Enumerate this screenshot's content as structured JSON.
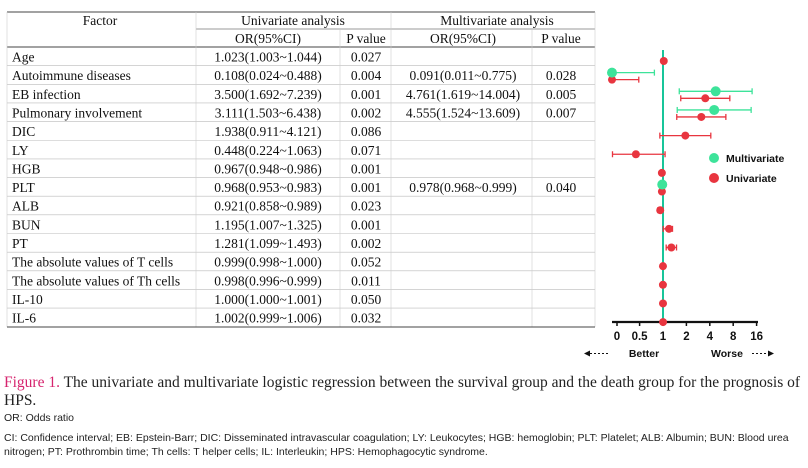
{
  "table": {
    "header_factor": "Factor",
    "header_univariate": "Univariate analysis",
    "header_multivariate": "Multivariate analysis",
    "sub_or": "OR(95%CI)",
    "sub_p": "P  value",
    "rows": [
      {
        "factor": "Age",
        "uni_or": "1.023(1.003~1.044)",
        "uni_p": "0.027",
        "multi_or": "",
        "multi_p": ""
      },
      {
        "factor": "Autoimmune diseases",
        "uni_or": "0.108(0.024~0.488)",
        "uni_p": "0.004",
        "multi_or": "0.091(0.011~0.775)",
        "multi_p": "0.028"
      },
      {
        "factor": "EB infection",
        "uni_or": "3.500(1.692~7.239)",
        "uni_p": "0.001",
        "multi_or": "4.761(1.619~14.004)",
        "multi_p": "0.005"
      },
      {
        "factor": "Pulmonary involvement",
        "uni_or": "3.111(1.503~6.438)",
        "uni_p": "0.002",
        "multi_or": "4.555(1.524~13.609)",
        "multi_p": "0.007"
      },
      {
        "factor": "DIC",
        "uni_or": "1.938(0.911~4.121)",
        "uni_p": "0.086",
        "multi_or": "",
        "multi_p": ""
      },
      {
        "factor": "LY",
        "uni_or": "0.448(0.224~1.063)",
        "uni_p": "0.071",
        "multi_or": "",
        "multi_p": ""
      },
      {
        "factor": "HGB",
        "uni_or": "0.967(0.948~0.986)",
        "uni_p": "0.001",
        "multi_or": "",
        "multi_p": ""
      },
      {
        "factor": "PLT",
        "uni_or": "0.968(0.953~0.983)",
        "uni_p": "0.001",
        "multi_or": "0.978(0.968~0.999)",
        "multi_p": "0.040"
      },
      {
        "factor": "ALB",
        "uni_or": "0.921(0.858~0.989)",
        "uni_p": "0.023",
        "multi_or": "",
        "multi_p": ""
      },
      {
        "factor": "BUN",
        "uni_or": "1.195(1.007~1.325)",
        "uni_p": "0.001",
        "multi_or": "",
        "multi_p": ""
      },
      {
        "factor": "PT",
        "uni_or": "1.281(1.099~1.493)",
        "uni_p": "0.002",
        "multi_or": "",
        "multi_p": ""
      },
      {
        "factor": "The absolute values of T cells",
        "uni_or": "0.999(0.998~1.000)",
        "uni_p": "0.052",
        "multi_or": "",
        "multi_p": ""
      },
      {
        "factor": "The absolute values of Th cells",
        "uni_or": "0.998(0.996~0.999)",
        "uni_p": "0.011",
        "multi_or": "",
        "multi_p": ""
      },
      {
        "factor": "IL-10",
        "uni_or": "1.000(1.000~1.001)",
        "uni_p": "0.050",
        "multi_or": "",
        "multi_p": ""
      },
      {
        "factor": "IL-6",
        "uni_or": "1.002(0.999~1.006)",
        "uni_p": "0.032",
        "multi_or": "",
        "multi_p": ""
      }
    ]
  },
  "chart_data": {
    "type": "forest",
    "x_scale": "log2",
    "x_ticks": [
      0,
      0.5,
      1,
      2,
      4,
      8,
      16
    ],
    "x_tick_labels": [
      "0",
      "0.5",
      "1",
      "2",
      "4",
      "8",
      "16"
    ],
    "reference_line": 1,
    "direction_left": "Better",
    "direction_right": "Worse",
    "legend": [
      {
        "name": "Multivariate",
        "color": "#3de39a"
      },
      {
        "name": "Univariate",
        "color": "#e8353f"
      }
    ],
    "legend_position": "right",
    "series": [
      {
        "name": "Univariate",
        "color": "#e8353f",
        "points": [
          {
            "factor": "Age",
            "or": 1.023,
            "lo": 1.003,
            "hi": 1.044
          },
          {
            "factor": "Autoimmune diseases",
            "or": 0.108,
            "lo": 0.024,
            "hi": 0.488
          },
          {
            "factor": "EB infection",
            "or": 3.5,
            "lo": 1.692,
            "hi": 7.239
          },
          {
            "factor": "Pulmonary involvement",
            "or": 3.111,
            "lo": 1.503,
            "hi": 6.438
          },
          {
            "factor": "DIC",
            "or": 1.938,
            "lo": 0.911,
            "hi": 4.121
          },
          {
            "factor": "LY",
            "or": 0.448,
            "lo": 0.224,
            "hi": 1.063
          },
          {
            "factor": "HGB",
            "or": 0.967,
            "lo": 0.948,
            "hi": 0.986
          },
          {
            "factor": "PLT",
            "or": 0.968,
            "lo": 0.953,
            "hi": 0.983
          },
          {
            "factor": "ALB",
            "or": 0.921,
            "lo": 0.858,
            "hi": 0.989
          },
          {
            "factor": "BUN",
            "or": 1.195,
            "lo": 1.007,
            "hi": 1.325
          },
          {
            "factor": "PT",
            "or": 1.281,
            "lo": 1.099,
            "hi": 1.493
          },
          {
            "factor": "The absolute values of T cells",
            "or": 0.999,
            "lo": 0.998,
            "hi": 1.0
          },
          {
            "factor": "The absolute values of Th cells",
            "or": 0.998,
            "lo": 0.996,
            "hi": 0.999
          },
          {
            "factor": "IL-10",
            "or": 1.0,
            "lo": 1.0,
            "hi": 1.001
          },
          {
            "factor": "IL-6",
            "or": 1.002,
            "lo": 0.999,
            "hi": 1.006
          }
        ]
      },
      {
        "name": "Multivariate",
        "color": "#3de39a",
        "points": [
          {
            "factor": "Autoimmune diseases",
            "or": 0.091,
            "lo": 0.011,
            "hi": 0.775
          },
          {
            "factor": "EB infection",
            "or": 4.761,
            "lo": 1.619,
            "hi": 14.004
          },
          {
            "factor": "Pulmonary involvement",
            "or": 4.555,
            "lo": 1.524,
            "hi": 13.609
          },
          {
            "factor": "PLT",
            "or": 0.978,
            "lo": 0.968,
            "hi": 0.999
          }
        ]
      }
    ]
  },
  "caption": {
    "label": "Figure 1.",
    "text": " The univariate and multivariate logistic regression between the survival group and the death group for the prognosis of HPS.",
    "note1": "OR: Odds ratio",
    "note2": "CI: Confidence interval; EB: Epstein-Barr; DIC: Disseminated intravascular coagulation; LY: Leukocytes; HGB: hemoglobin; PLT: Platelet; ALB: Albumin; BUN: Blood urea nitrogen; PT: Prothrombin time; Th  cells: T helper cells; IL: Interleukin; HPS: Hemophagocytic syndrome."
  }
}
